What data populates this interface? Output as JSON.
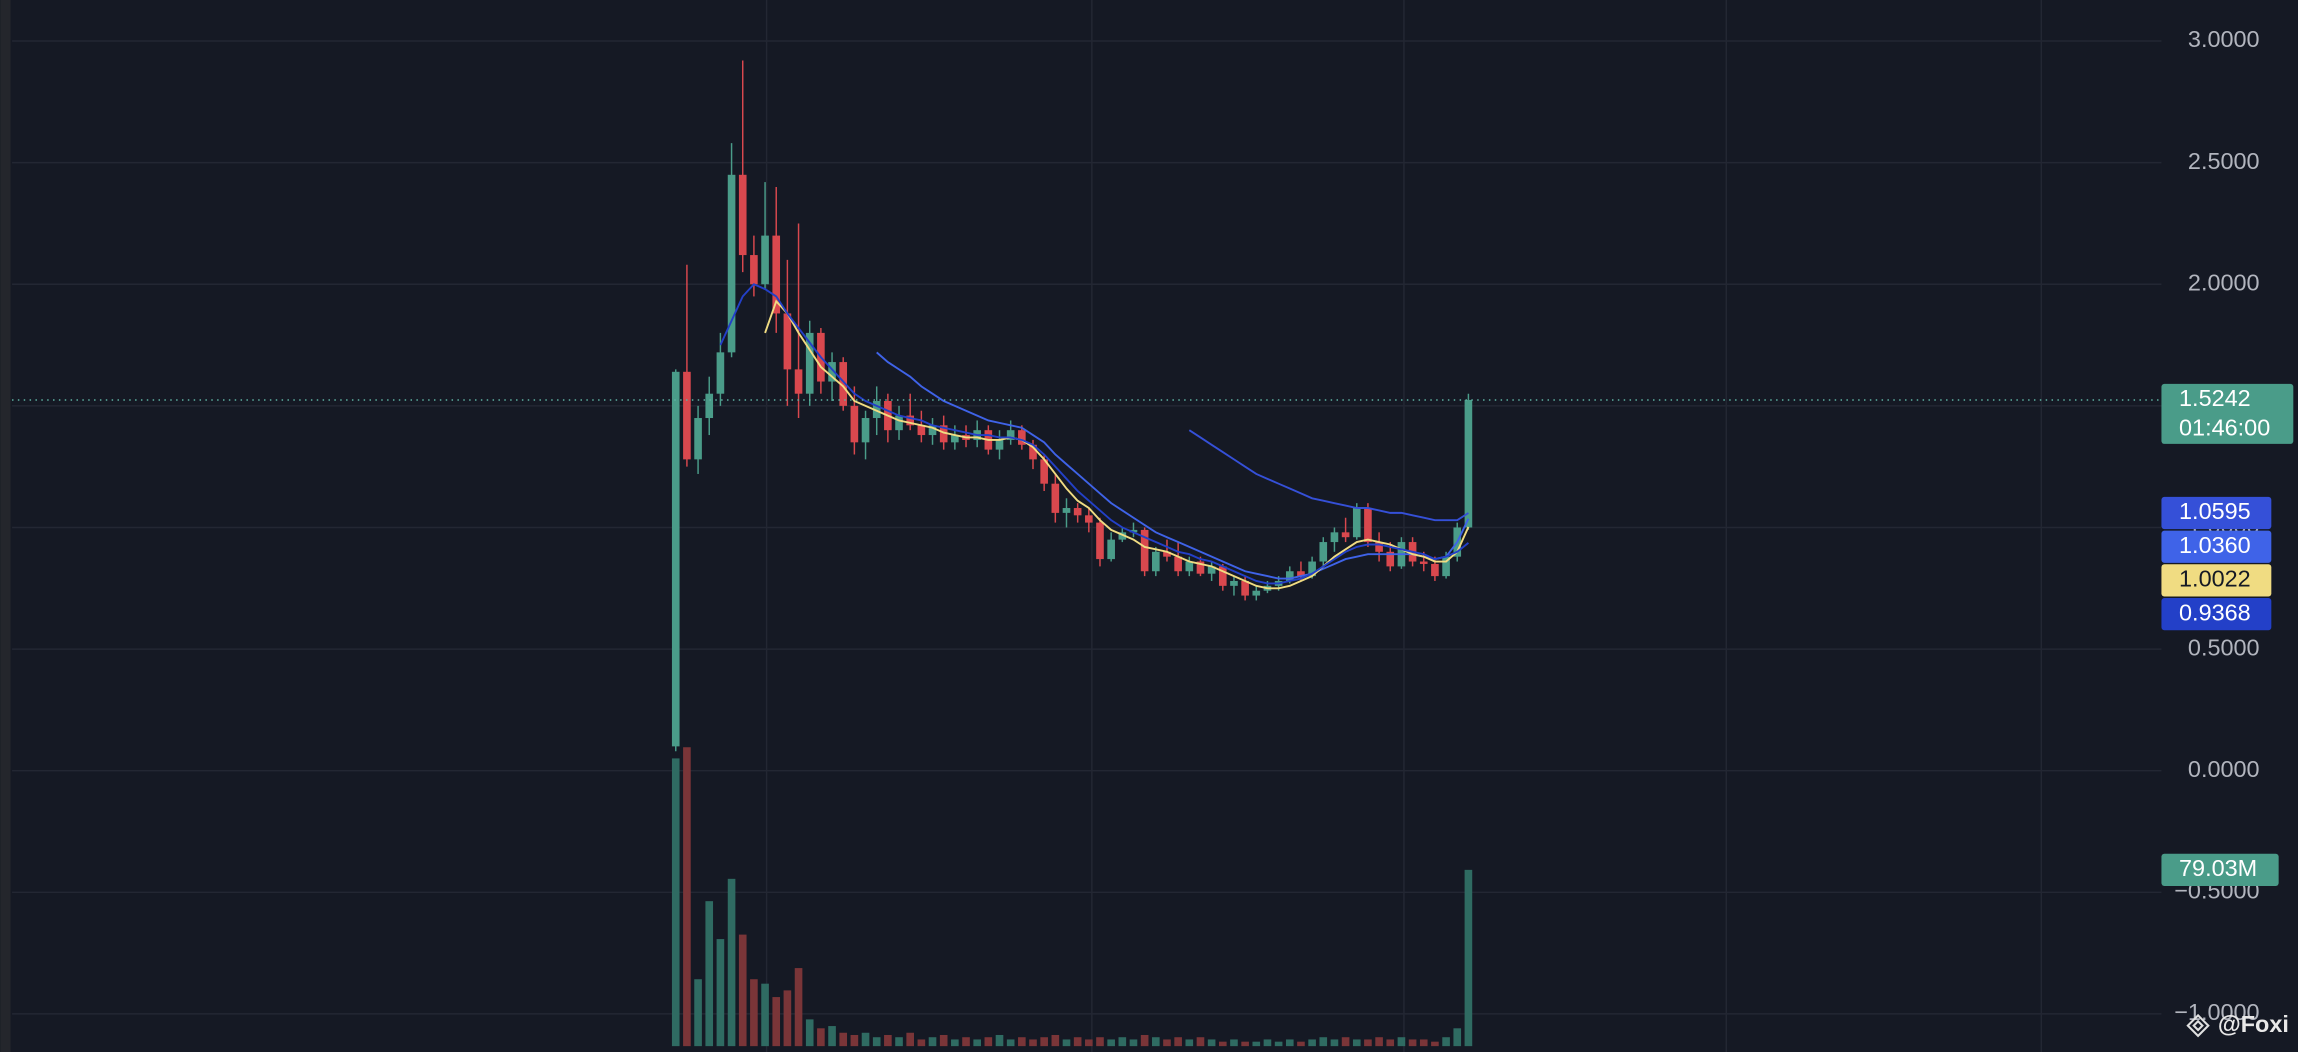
{
  "chart_data": {
    "type": "candlestick",
    "ylim": [
      -1.1566,
      3.1687
    ],
    "yticks": [
      {
        "value": 3,
        "label": "3.0000"
      },
      {
        "value": 2.5,
        "label": "2.5000"
      },
      {
        "value": 2,
        "label": "2.0000"
      },
      {
        "value": 1.5,
        "label": "1.5000"
      },
      {
        "value": 1,
        "label": "1.0000"
      },
      {
        "value": 0.5,
        "label": "0.5000"
      },
      {
        "value": 0,
        "label": "0.0000"
      },
      {
        "value": -0.5,
        "label": "−0.5000"
      },
      {
        "value": -1,
        "label": "−1.0000"
      }
    ],
    "grid": true,
    "up_color": "#4a9c89",
    "down_color": "#d9484e",
    "volume_up_color": "#2f6b62",
    "volume_down_color": "#7a3538",
    "open": [
      0.1,
      1.64,
      1.28,
      1.45,
      1.55,
      1.72,
      2.45,
      2.12,
      2.0,
      2.2,
      1.88,
      1.65,
      1.55,
      1.8,
      1.6,
      1.68,
      1.5,
      1.35,
      1.45,
      1.52,
      1.4,
      1.46,
      1.42,
      1.38,
      1.42,
      1.35,
      1.38,
      1.36,
      1.4,
      1.32,
      1.36,
      1.4,
      1.34,
      1.28,
      1.18,
      1.06,
      1.08,
      1.05,
      1.02,
      0.87,
      0.95,
      0.98,
      0.99,
      0.82,
      0.9,
      0.88,
      0.82,
      0.86,
      0.81,
      0.84,
      0.76,
      0.78,
      0.72,
      0.74,
      0.76,
      0.78,
      0.82,
      0.8,
      0.86,
      0.94,
      0.98,
      0.96,
      1.08,
      0.94,
      0.9,
      0.84,
      0.94,
      0.86,
      0.85,
      0.8,
      0.88,
      1.0
    ],
    "high": [
      1.65,
      2.08,
      1.5,
      1.62,
      1.8,
      2.58,
      2.92,
      2.2,
      2.42,
      2.4,
      2.1,
      2.25,
      1.85,
      1.82,
      1.72,
      1.7,
      1.58,
      1.48,
      1.58,
      1.55,
      1.5,
      1.55,
      1.48,
      1.45,
      1.46,
      1.42,
      1.42,
      1.44,
      1.42,
      1.4,
      1.44,
      1.42,
      1.36,
      1.3,
      1.22,
      1.12,
      1.1,
      1.08,
      1.04,
      0.98,
      1.0,
      1.02,
      1.0,
      0.92,
      0.95,
      0.94,
      0.88,
      0.88,
      0.86,
      0.85,
      0.8,
      0.8,
      0.76,
      0.78,
      0.8,
      0.84,
      0.86,
      0.88,
      0.96,
      1.0,
      1.04,
      1.1,
      1.1,
      0.98,
      0.94,
      0.96,
      0.96,
      0.9,
      0.88,
      0.9,
      1.02,
      1.55
    ],
    "low": [
      0.08,
      1.25,
      1.22,
      1.38,
      1.5,
      1.7,
      2.05,
      1.95,
      1.98,
      1.8,
      1.5,
      1.45,
      1.5,
      1.55,
      1.52,
      1.48,
      1.3,
      1.28,
      1.38,
      1.35,
      1.36,
      1.4,
      1.35,
      1.34,
      1.32,
      1.32,
      1.33,
      1.33,
      1.3,
      1.28,
      1.34,
      1.32,
      1.24,
      1.15,
      1.02,
      1.0,
      1.02,
      0.98,
      0.84,
      0.86,
      0.94,
      0.96,
      0.8,
      0.8,
      0.86,
      0.8,
      0.8,
      0.8,
      0.78,
      0.74,
      0.72,
      0.7,
      0.7,
      0.73,
      0.74,
      0.77,
      0.78,
      0.79,
      0.84,
      0.9,
      0.94,
      0.95,
      0.92,
      0.86,
      0.82,
      0.83,
      0.84,
      0.82,
      0.78,
      0.79,
      0.86,
      0.99
    ],
    "close": [
      1.64,
      1.28,
      1.45,
      1.55,
      1.72,
      2.45,
      2.12,
      2.0,
      2.2,
      1.88,
      1.65,
      1.55,
      1.8,
      1.6,
      1.68,
      1.5,
      1.35,
      1.45,
      1.52,
      1.4,
      1.46,
      1.42,
      1.38,
      1.42,
      1.35,
      1.38,
      1.36,
      1.4,
      1.32,
      1.36,
      1.4,
      1.34,
      1.28,
      1.18,
      1.06,
      1.08,
      1.05,
      1.02,
      0.87,
      0.95,
      0.98,
      0.99,
      0.82,
      0.9,
      0.88,
      0.82,
      0.86,
      0.81,
      0.84,
      0.76,
      0.78,
      0.72,
      0.74,
      0.76,
      0.78,
      0.82,
      0.8,
      0.86,
      0.94,
      0.98,
      0.96,
      1.08,
      0.94,
      0.9,
      0.84,
      0.94,
      0.86,
      0.85,
      0.8,
      0.88,
      1.0,
      1.5242
    ],
    "volume": [
      129,
      134,
      30,
      65,
      48,
      75,
      50,
      30,
      28,
      22,
      25,
      35,
      12,
      8,
      9,
      6,
      5,
      6,
      4,
      5,
      4,
      6,
      3,
      4,
      5,
      3,
      4,
      3,
      4,
      5,
      3,
      4,
      3,
      4,
      5,
      3,
      4,
      3,
      4,
      3,
      4,
      3,
      5,
      4,
      3,
      4,
      3,
      4,
      3,
      2,
      3,
      2,
      2,
      3,
      2,
      3,
      2,
      3,
      4,
      3,
      4,
      3,
      3,
      4,
      3,
      4,
      3,
      3,
      2,
      4,
      8,
      79.03
    ],
    "volume_tag": {
      "value": 79.03,
      "label": "79.03M"
    },
    "last_price": 1.5242,
    "countdown": "01:46:00",
    "moving_averages": [
      {
        "color": "#3550d8",
        "text_color": "#ffffff",
        "tag": {
          "value": 1.0595,
          "label": "1.0595"
        },
        "values": [
          null,
          null,
          null,
          null,
          null,
          null,
          null,
          null,
          null,
          null,
          null,
          null,
          null,
          null,
          null,
          null,
          null,
          null,
          null,
          null,
          null,
          null,
          null,
          null,
          null,
          null,
          null,
          null,
          null,
          null,
          null,
          null,
          null,
          null,
          null,
          null,
          null,
          null,
          null,
          null,
          null,
          null,
          null,
          null,
          null,
          null,
          1.4,
          1.37,
          1.34,
          1.31,
          1.28,
          1.25,
          1.22,
          1.2,
          1.18,
          1.16,
          1.14,
          1.12,
          1.11,
          1.1,
          1.09,
          1.08,
          1.08,
          1.07,
          1.06,
          1.06,
          1.05,
          1.04,
          1.03,
          1.03,
          1.03,
          1.0595
        ]
      },
      {
        "color": "#3f63e8",
        "text_color": "#ffffff",
        "tag": {
          "value": 1.036,
          "label": "1.0360"
        },
        "values": [
          null,
          null,
          null,
          null,
          null,
          null,
          null,
          null,
          null,
          null,
          null,
          null,
          null,
          null,
          null,
          null,
          null,
          null,
          1.72,
          1.68,
          1.65,
          1.62,
          1.58,
          1.55,
          1.52,
          1.5,
          1.48,
          1.46,
          1.44,
          1.43,
          1.42,
          1.41,
          1.38,
          1.35,
          1.3,
          1.26,
          1.22,
          1.18,
          1.14,
          1.1,
          1.07,
          1.04,
          1.01,
          0.98,
          0.96,
          0.94,
          0.92,
          0.9,
          0.88,
          0.86,
          0.84,
          0.82,
          0.81,
          0.8,
          0.79,
          0.79,
          0.8,
          0.81,
          0.83,
          0.85,
          0.87,
          0.88,
          0.89,
          0.89,
          0.89,
          0.89,
          0.89,
          0.88,
          0.87,
          0.88,
          0.94,
          1.036
        ]
      },
      {
        "color": "#f0dc82",
        "text_color": "#151924",
        "tag": {
          "value": 1.0022,
          "label": "1.0022"
        },
        "values": [
          null,
          null,
          null,
          null,
          null,
          null,
          null,
          null,
          1.8,
          1.93,
          1.88,
          1.8,
          1.73,
          1.66,
          1.62,
          1.58,
          1.52,
          1.5,
          1.48,
          1.46,
          1.44,
          1.43,
          1.42,
          1.41,
          1.39,
          1.38,
          1.37,
          1.37,
          1.36,
          1.36,
          1.37,
          1.36,
          1.33,
          1.28,
          1.22,
          1.16,
          1.11,
          1.08,
          1.03,
          0.99,
          0.97,
          0.95,
          0.92,
          0.91,
          0.9,
          0.88,
          0.86,
          0.85,
          0.84,
          0.82,
          0.8,
          0.78,
          0.76,
          0.75,
          0.75,
          0.76,
          0.78,
          0.8,
          0.84,
          0.88,
          0.91,
          0.94,
          0.95,
          0.94,
          0.93,
          0.91,
          0.89,
          0.88,
          0.86,
          0.86,
          0.9,
          1.0022
        ]
      },
      {
        "color": "#2340c8",
        "text_color": "#ffffff",
        "tag": {
          "value": 0.9368,
          "label": "0.9368"
        },
        "values": [
          null,
          null,
          null,
          null,
          1.75,
          1.85,
          1.95,
          2.0,
          1.98,
          1.95,
          1.88,
          1.82,
          1.76,
          1.7,
          1.65,
          1.6,
          1.55,
          1.52,
          1.5,
          1.48,
          1.46,
          1.45,
          1.44,
          1.42,
          1.41,
          1.4,
          1.39,
          1.38,
          1.38,
          1.37,
          1.37,
          1.36,
          1.34,
          1.3,
          1.25,
          1.2,
          1.15,
          1.11,
          1.07,
          1.03,
          1.0,
          0.98,
          0.96,
          0.94,
          0.92,
          0.9,
          0.89,
          0.87,
          0.86,
          0.84,
          0.82,
          0.8,
          0.78,
          0.77,
          0.77,
          0.78,
          0.79,
          0.81,
          0.84,
          0.87,
          0.9,
          0.92,
          0.93,
          0.93,
          0.92,
          0.91,
          0.9,
          0.89,
          0.87,
          0.88,
          0.9,
          0.9368
        ]
      }
    ],
    "watermark": "@Foxi"
  }
}
